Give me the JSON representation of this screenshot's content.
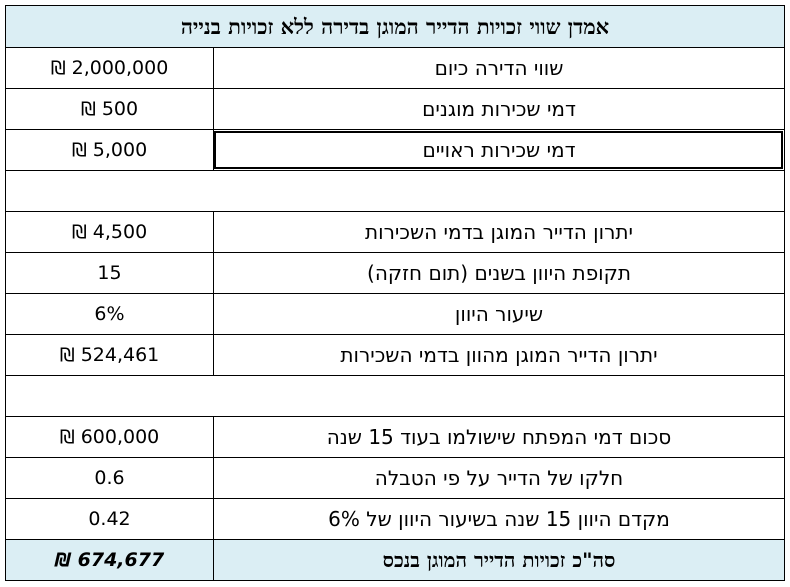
{
  "sheet": {
    "title": "אמדן שווי זכויות הדייר המוגן בדירה ללא זכויות בנייה",
    "rows": [
      {
        "label": "שווי הדירה כיום",
        "value": "₪ 2,000,000"
      },
      {
        "label": "דמי שכירות מוגנים",
        "value": "₪ 500"
      },
      {
        "label": "דמי שכירות ראויים",
        "value": "₪ 5,000"
      },
      {
        "label": "",
        "value": ""
      },
      {
        "label": "יתרון הדייר המוגן בדמי השכירות",
        "value": "₪ 4,500"
      },
      {
        "label": "תקופת היוון בשנים (תום חזקה)",
        "value": "15"
      },
      {
        "label": "שיעור היוון",
        "value": "6%"
      },
      {
        "label": "יתרון הדייר המוגן מהוון בדמי השכירות",
        "value": "₪ 524,461"
      },
      {
        "label": "",
        "value": ""
      },
      {
        "label": "סכום דמי המפתח שישולמו בעוד 15 שנה",
        "value": "₪ 600,000"
      },
      {
        "label": "חלקו של הדייר על פי הטבלה",
        "value": "0.6"
      },
      {
        "label": "מקדם היוון 15 שנה בשיעור היוון של 6%",
        "value": "0.42"
      }
    ],
    "total": {
      "label": "סה\"כ זכויות הדייר המוגן בנכס",
      "value": "₪ 674,677"
    },
    "colors": {
      "header_bg": "#dbeef4",
      "border": "#000000"
    }
  }
}
